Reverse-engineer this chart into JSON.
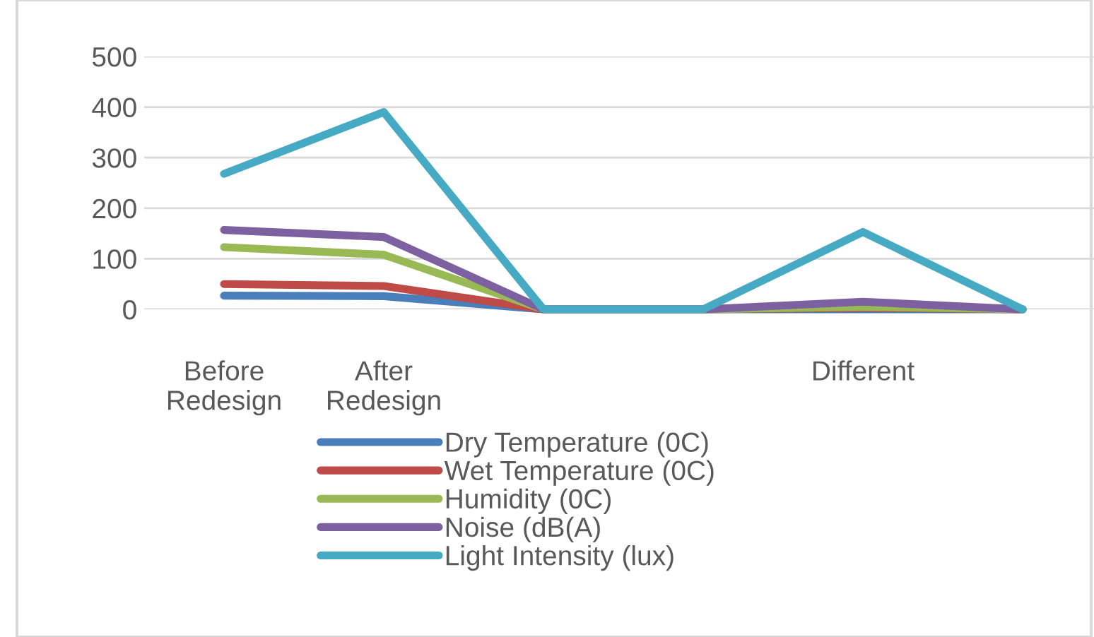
{
  "chart_data": {
    "type": "line",
    "categories": [
      "Before\nRedesign",
      "After\nRedesign",
      null,
      null,
      "Different",
      null
    ],
    "series": [
      {
        "name": "Dry Temperature (0C)",
        "color": "#4a7ebb",
        "values": [
          27,
          26,
          0,
          0,
          0,
          0
        ]
      },
      {
        "name": "Wet Temperature (0C)",
        "color": "#be4b48",
        "values": [
          50,
          46,
          0,
          0,
          3,
          0
        ]
      },
      {
        "name": "Humidity (0C)",
        "color": "#98b954",
        "values": [
          123,
          108,
          0,
          0,
          5,
          0
        ]
      },
      {
        "name": "Noise (dB(A)",
        "color": "#7d60a0",
        "values": [
          157,
          143,
          0,
          0,
          15,
          0
        ]
      },
      {
        "name": "Light Intensity (lux)",
        "color": "#46aac5",
        "values": [
          268,
          390,
          0,
          0,
          153,
          0
        ]
      }
    ],
    "ylim": [
      0,
      500
    ],
    "yticks": [
      0,
      100,
      200,
      300,
      400,
      500
    ],
    "grid": "y",
    "legend": "bottom",
    "marker": "none",
    "line_style": "solid"
  }
}
